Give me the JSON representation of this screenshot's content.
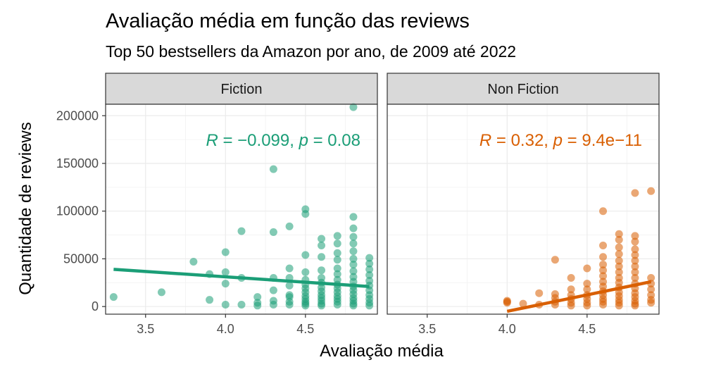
{
  "chart_data": {
    "type": "scatter",
    "title": "Avaliação média em função das reviews",
    "subtitle": "Top 50 bestsellers da Amazon por ano, de 2009 até 2022",
    "xlabel": "Avaliação média",
    "ylabel": "Quantidade de reviews",
    "xlim": [
      3.25,
      4.95
    ],
    "ylim": [
      -8000,
      212000
    ],
    "x_ticks": [
      3.5,
      4.0,
      4.5
    ],
    "x_tick_labels": [
      "3.5",
      "4.0",
      "4.5"
    ],
    "y_ticks": [
      0,
      50000,
      100000,
      150000,
      200000
    ],
    "y_tick_labels": [
      "0",
      "50000",
      "100000",
      "150000",
      "200000"
    ],
    "grid": true,
    "panels": [
      {
        "label": "Fiction",
        "color": "#1b9e77",
        "stat_r": "−0.099",
        "stat_p": "0.08",
        "trend": {
          "x": [
            3.3,
            4.9
          ],
          "y": [
            39000,
            21000
          ]
        },
        "points": [
          [
            3.3,
            10000
          ],
          [
            3.6,
            15000
          ],
          [
            3.8,
            47000
          ],
          [
            3.9,
            34000
          ],
          [
            3.9,
            7000
          ],
          [
            4.0,
            57000
          ],
          [
            4.0,
            36000
          ],
          [
            4.0,
            24000
          ],
          [
            4.0,
            2000
          ],
          [
            4.1,
            79000
          ],
          [
            4.1,
            30000
          ],
          [
            4.1,
            2000
          ],
          [
            4.2,
            10000
          ],
          [
            4.2,
            4000
          ],
          [
            4.2,
            1000
          ],
          [
            4.3,
            144000
          ],
          [
            4.3,
            78000
          ],
          [
            4.3,
            30000
          ],
          [
            4.3,
            17000
          ],
          [
            4.3,
            6000
          ],
          [
            4.3,
            2000
          ],
          [
            4.4,
            84000
          ],
          [
            4.4,
            40000
          ],
          [
            4.4,
            30000
          ],
          [
            4.4,
            22000
          ],
          [
            4.4,
            12000
          ],
          [
            4.4,
            10000
          ],
          [
            4.4,
            5000
          ],
          [
            4.4,
            2000
          ],
          [
            4.5,
            102000
          ],
          [
            4.5,
            97000
          ],
          [
            4.5,
            54000
          ],
          [
            4.5,
            36000
          ],
          [
            4.5,
            28000
          ],
          [
            4.5,
            23000
          ],
          [
            4.5,
            19000
          ],
          [
            4.5,
            15000
          ],
          [
            4.5,
            11000
          ],
          [
            4.5,
            8000
          ],
          [
            4.5,
            5000
          ],
          [
            4.5,
            3000
          ],
          [
            4.5,
            1000
          ],
          [
            4.6,
            71000
          ],
          [
            4.6,
            64000
          ],
          [
            4.6,
            52000
          ],
          [
            4.6,
            38000
          ],
          [
            4.6,
            30000
          ],
          [
            4.6,
            25000
          ],
          [
            4.6,
            20000
          ],
          [
            4.6,
            16000
          ],
          [
            4.6,
            12000
          ],
          [
            4.6,
            9000
          ],
          [
            4.6,
            6000
          ],
          [
            4.6,
            3000
          ],
          [
            4.6,
            1000
          ],
          [
            4.7,
            74000
          ],
          [
            4.7,
            66000
          ],
          [
            4.7,
            56000
          ],
          [
            4.7,
            49000
          ],
          [
            4.7,
            40000
          ],
          [
            4.7,
            34000
          ],
          [
            4.7,
            28000
          ],
          [
            4.7,
            23000
          ],
          [
            4.7,
            19000
          ],
          [
            4.7,
            15000
          ],
          [
            4.7,
            11000
          ],
          [
            4.7,
            8000
          ],
          [
            4.7,
            5000
          ],
          [
            4.7,
            2000
          ],
          [
            4.8,
            209000
          ],
          [
            4.8,
            94000
          ],
          [
            4.8,
            82000
          ],
          [
            4.8,
            73000
          ],
          [
            4.8,
            66000
          ],
          [
            4.8,
            58000
          ],
          [
            4.8,
            50000
          ],
          [
            4.8,
            44000
          ],
          [
            4.8,
            37000
          ],
          [
            4.8,
            31000
          ],
          [
            4.8,
            26000
          ],
          [
            4.8,
            21000
          ],
          [
            4.8,
            17000
          ],
          [
            4.8,
            13000
          ],
          [
            4.8,
            9000
          ],
          [
            4.8,
            6000
          ],
          [
            4.8,
            3000
          ],
          [
            4.8,
            1000
          ],
          [
            4.9,
            51000
          ],
          [
            4.9,
            45000
          ],
          [
            4.9,
            39000
          ],
          [
            4.9,
            33000
          ],
          [
            4.9,
            27000
          ],
          [
            4.9,
            22000
          ],
          [
            4.9,
            17000
          ],
          [
            4.9,
            12000
          ],
          [
            4.9,
            8000
          ],
          [
            4.9,
            4000
          ],
          [
            4.9,
            1000
          ]
        ]
      },
      {
        "label": "Non Fiction",
        "color": "#d95f02",
        "stat_r": "0.32",
        "stat_p": "9.4e−11",
        "trend": {
          "x": [
            4.0,
            4.9
          ],
          "y": [
            -5000,
            26000
          ]
        },
        "points": [
          [
            4.0,
            6000
          ],
          [
            4.0,
            5000
          ],
          [
            4.0,
            4000
          ],
          [
            4.1,
            3000
          ],
          [
            4.2,
            14000
          ],
          [
            4.2,
            2000
          ],
          [
            4.3,
            49000
          ],
          [
            4.3,
            13000
          ],
          [
            4.3,
            9000
          ],
          [
            4.3,
            5000
          ],
          [
            4.3,
            2000
          ],
          [
            4.4,
            30000
          ],
          [
            4.4,
            18000
          ],
          [
            4.4,
            12000
          ],
          [
            4.4,
            8000
          ],
          [
            4.4,
            4000
          ],
          [
            4.4,
            1000
          ],
          [
            4.5,
            40000
          ],
          [
            4.5,
            24000
          ],
          [
            4.5,
            18000
          ],
          [
            4.5,
            12000
          ],
          [
            4.5,
            8000
          ],
          [
            4.5,
            4000
          ],
          [
            4.5,
            1000
          ],
          [
            4.6,
            100000
          ],
          [
            4.6,
            64000
          ],
          [
            4.6,
            52000
          ],
          [
            4.6,
            44000
          ],
          [
            4.6,
            38000
          ],
          [
            4.6,
            32000
          ],
          [
            4.6,
            26000
          ],
          [
            4.6,
            21000
          ],
          [
            4.6,
            16000
          ],
          [
            4.6,
            12000
          ],
          [
            4.6,
            8000
          ],
          [
            4.6,
            5000
          ],
          [
            4.6,
            2000
          ],
          [
            4.7,
            76000
          ],
          [
            4.7,
            70000
          ],
          [
            4.7,
            62000
          ],
          [
            4.7,
            55000
          ],
          [
            4.7,
            48000
          ],
          [
            4.7,
            42000
          ],
          [
            4.7,
            36000
          ],
          [
            4.7,
            30000
          ],
          [
            4.7,
            25000
          ],
          [
            4.7,
            20000
          ],
          [
            4.7,
            15000
          ],
          [
            4.7,
            11000
          ],
          [
            4.7,
            7000
          ],
          [
            4.7,
            4000
          ],
          [
            4.7,
            1000
          ],
          [
            4.8,
            119000
          ],
          [
            4.8,
            74000
          ],
          [
            4.8,
            68000
          ],
          [
            4.8,
            60000
          ],
          [
            4.8,
            54000
          ],
          [
            4.8,
            48000
          ],
          [
            4.8,
            42000
          ],
          [
            4.8,
            36000
          ],
          [
            4.8,
            30000
          ],
          [
            4.8,
            24000
          ],
          [
            4.8,
            19000
          ],
          [
            4.8,
            14000
          ],
          [
            4.8,
            10000
          ],
          [
            4.8,
            6000
          ],
          [
            4.8,
            3000
          ],
          [
            4.8,
            1000
          ],
          [
            4.9,
            121000
          ],
          [
            4.9,
            30000
          ],
          [
            4.9,
            24000
          ],
          [
            4.9,
            18000
          ],
          [
            4.9,
            12000
          ],
          [
            4.9,
            7000
          ],
          [
            4.9,
            4000
          ]
        ]
      }
    ]
  }
}
